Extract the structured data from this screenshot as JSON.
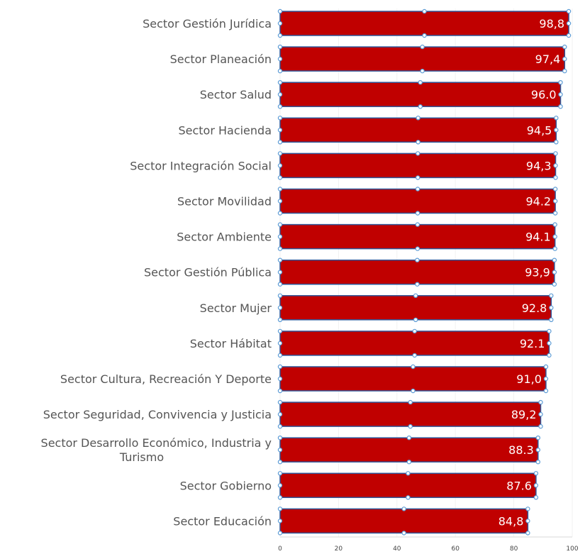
{
  "chart_data": {
    "type": "bar",
    "orientation": "horizontal",
    "title": "",
    "xlabel": "",
    "ylabel": "",
    "xlim": [
      0,
      100
    ],
    "grid": false,
    "legend": "none",
    "bar_color": "#c00000",
    "bar_outline_color": "#2f5597",
    "handle_color": "#5b9bd5",
    "categories": [
      [
        "Sector Gestión Jurídica"
      ],
      [
        "Sector Planeación"
      ],
      [
        "Sector Salud"
      ],
      [
        "Sector Hacienda"
      ],
      [
        "Sector Integración Social"
      ],
      [
        "Sector Movilidad"
      ],
      [
        "Sector Ambiente"
      ],
      [
        "Sector Gestión Pública"
      ],
      [
        "Sector Mujer"
      ],
      [
        "Sector Hábitat"
      ],
      [
        "Sector Cultura, Recreación Y Deporte"
      ],
      [
        "Sector Seguridad, Convivencia y Justicia"
      ],
      [
        "Sector Desarrollo Económico, Industria y",
        "Turismo"
      ],
      [
        "Sector Gobierno"
      ],
      [
        "Sector Educación"
      ]
    ],
    "values": [
      98.8,
      97.4,
      96.0,
      94.5,
      94.3,
      94.2,
      94.1,
      93.9,
      92.8,
      92.1,
      91.0,
      89.2,
      88.3,
      87.6,
      84.8
    ],
    "value_labels": [
      "98,8",
      "97,4",
      "96.0",
      "94,5",
      "94,3",
      "94.2",
      "94.1",
      "93,9",
      "92.8",
      "92.1",
      "91,0",
      "89,2",
      "88.3",
      "87.6",
      "84,8"
    ],
    "x_ticks": [
      0,
      20,
      40,
      60,
      80,
      100
    ],
    "x_tick_labels": [
      "0",
      "20",
      "40",
      "60",
      "80",
      "100"
    ]
  }
}
